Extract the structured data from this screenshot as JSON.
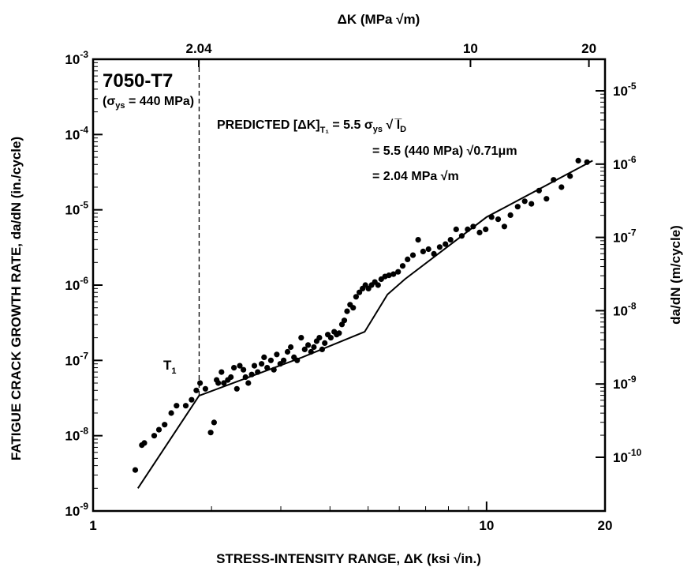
{
  "chart_data": {
    "type": "scatter",
    "scale": "log-log",
    "xlabel": "STRESS-INTENSITY RANGE, ΔK (ksi √in.)",
    "ylabel": "FATIGUE CRACK GROWTH RATE, da/dN (in./cycle)",
    "x2label": "ΔK (MPa √m)",
    "y2label": "da/dN (m/cycle)",
    "xlim": [
      1,
      20
    ],
    "ylim": [
      1e-09,
      0.001
    ],
    "x_ticks": [
      {
        "value": 1,
        "label": "1"
      },
      {
        "value": 10,
        "label": "10"
      },
      {
        "value": 20,
        "label": "20"
      }
    ],
    "y_ticks": [
      {
        "value": 1e-09,
        "base": "10",
        "exp": "-9"
      },
      {
        "value": 1e-08,
        "base": "10",
        "exp": "-8"
      },
      {
        "value": 1e-07,
        "base": "10",
        "exp": "-7"
      },
      {
        "value": 1e-06,
        "base": "10",
        "exp": "-6"
      },
      {
        "value": 1e-05,
        "base": "10",
        "exp": "-5"
      },
      {
        "value": 0.0001,
        "base": "10",
        "exp": "-4"
      },
      {
        "value": 0.001,
        "base": "10",
        "exp": "-3"
      }
    ],
    "x2_ticks": [
      {
        "value": 2.04,
        "label": "2.04"
      },
      {
        "value": 10,
        "label": "10"
      },
      {
        "value": 20,
        "label": "20"
      }
    ],
    "y2_ticks": [
      {
        "value": 1e-10,
        "base": "10",
        "exp": "-10"
      },
      {
        "value": 1e-09,
        "base": "10",
        "exp": "-9"
      },
      {
        "value": 1e-08,
        "base": "10",
        "exp": "-8"
      },
      {
        "value": 1e-07,
        "base": "10",
        "exp": "-7"
      },
      {
        "value": 1e-06,
        "base": "10",
        "exp": "-6"
      },
      {
        "value": 1e-05,
        "base": "10",
        "exp": "-5"
      }
    ],
    "threshold": {
      "x": 1.86,
      "x2_value": 2.04,
      "label": "T",
      "label_sub": "1"
    },
    "trend_line": {
      "x": [
        1.3,
        1.86,
        3.4,
        4.9,
        5.6,
        6.2,
        10.0,
        18.6
      ],
      "y": [
        2e-09,
        3.4e-08,
        1.1e-07,
        2.4e-07,
        7.5e-07,
        1.2e-06,
        8e-06,
        4.5e-05
      ]
    },
    "series": [
      {
        "x": [
          1.28,
          1.33,
          1.35,
          1.43,
          1.47,
          1.52,
          1.58,
          1.63,
          1.72,
          1.78,
          1.83,
          1.87,
          1.93,
          1.99,
          2.03,
          2.06,
          2.08,
          2.12,
          2.15,
          2.2,
          2.24,
          2.28,
          2.32,
          2.36,
          2.41,
          2.44,
          2.48,
          2.53,
          2.57,
          2.62,
          2.68,
          2.72,
          2.77,
          2.83,
          2.88,
          2.93,
          2.99,
          3.05,
          3.12,
          3.18,
          3.24,
          3.3,
          3.38,
          3.45,
          3.52,
          3.58,
          3.64,
          3.7,
          3.76,
          3.82,
          3.88,
          3.95,
          4.02,
          4.1,
          4.16,
          4.22,
          4.29,
          4.35,
          4.42,
          4.5,
          4.58,
          4.66,
          4.75,
          4.84,
          4.92,
          5.01,
          5.1,
          5.2,
          5.3,
          5.4,
          5.52,
          5.65,
          5.8,
          5.96,
          6.12,
          6.3,
          6.5,
          6.7,
          6.9,
          7.12,
          7.35,
          7.6,
          7.86,
          8.1,
          8.37,
          8.65,
          8.95,
          9.25,
          9.6,
          9.95,
          10.3,
          10.7,
          11.1,
          11.5,
          12.0,
          12.5,
          13.0,
          13.6,
          14.2,
          14.8,
          15.5,
          16.3,
          17.1,
          18.0
        ],
        "y": [
          3.5e-09,
          7.5e-09,
          8e-09,
          1e-08,
          1.2e-08,
          1.4e-08,
          2e-08,
          2.5e-08,
          2.5e-08,
          3e-08,
          4e-08,
          5e-08,
          4.2e-08,
          1.1e-08,
          1.5e-08,
          5.5e-08,
          5e-08,
          7e-08,
          5e-08,
          5.5e-08,
          6e-08,
          8e-08,
          4.2e-08,
          8.5e-08,
          7.5e-08,
          6e-08,
          5e-08,
          6.5e-08,
          8.5e-08,
          7e-08,
          9e-08,
          1.1e-07,
          8e-08,
          1e-07,
          7.5e-08,
          1.2e-07,
          9e-08,
          1e-07,
          1.3e-07,
          1.5e-07,
          1.1e-07,
          1e-07,
          2e-07,
          1.4e-07,
          1.6e-07,
          1.3e-07,
          1.5e-07,
          1.8e-07,
          2e-07,
          1.4e-07,
          1.7e-07,
          2.2e-07,
          2e-07,
          2.4e-07,
          2.2e-07,
          2.3e-07,
          3e-07,
          3.4e-07,
          4.5e-07,
          5.5e-07,
          5e-07,
          7e-07,
          8e-07,
          9e-07,
          1e-06,
          9e-07,
          1e-06,
          1.1e-06,
          1e-06,
          1.2e-06,
          1.3e-06,
          1.35e-06,
          1.4e-06,
          1.5e-06,
          1.8e-06,
          2.2e-06,
          2.5e-06,
          4e-06,
          2.8e-06,
          3e-06,
          2.6e-06,
          3.2e-06,
          3.5e-06,
          4e-06,
          5.5e-06,
          4.5e-06,
          5.5e-06,
          6e-06,
          5e-06,
          5.5e-06,
          8e-06,
          7.5e-06,
          6e-06,
          8.5e-06,
          1.1e-05,
          1.3e-05,
          1.2e-05,
          1.8e-05,
          1.4e-05,
          2.5e-05,
          2e-05,
          2.8e-05,
          4.5e-05,
          4.3e-05
        ]
      }
    ]
  },
  "annotations": {
    "alloy": "7050-T7",
    "yield_prefix": "(σ",
    "yield_sub": "ys",
    "yield_suffix": " = 440 MPa)",
    "predicted_line1": "PREDICTED [ΔK]",
    "predicted_line1_sub": "T₁",
    "predicted_line1_eq": " = 5.5 σ",
    "predicted_line1_sub2": "ys",
    "predicted_line1_rhs": " √ l̅",
    "predicted_line1_sub3": "D",
    "predicted_line2": "= 5.5 (440 MPa) √0.71μm",
    "predicted_line3": "= 2.04 MPa √m"
  },
  "colors": {
    "ink": "#000000",
    "background": "#ffffff"
  }
}
